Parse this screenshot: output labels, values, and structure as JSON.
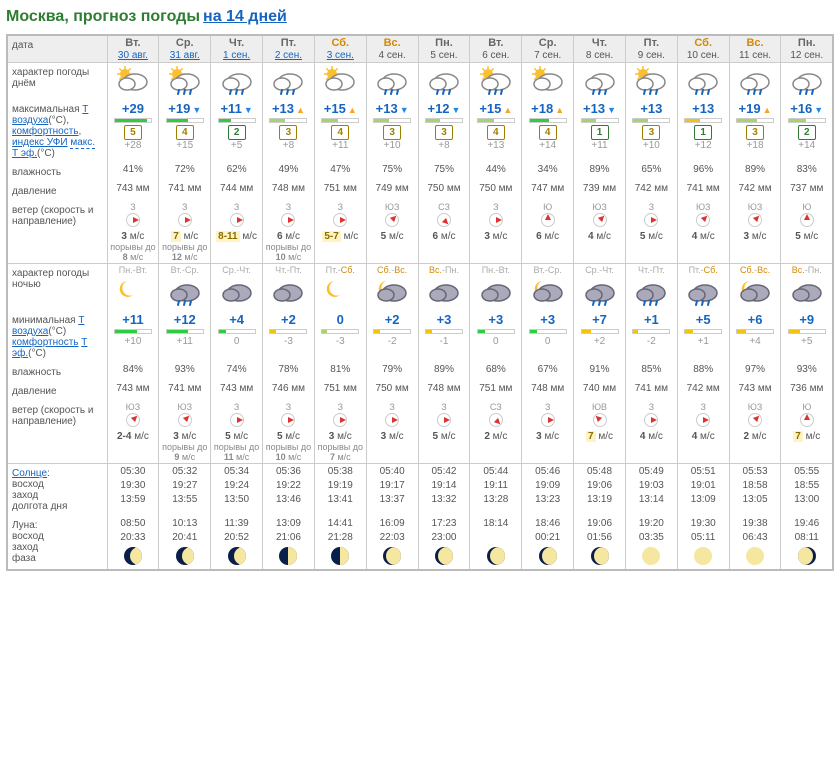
{
  "title": "Москва, прогноз погоды",
  "subtitle": "на 14 дней",
  "labels": {
    "date": "дата",
    "day_char": "характер погоды днём",
    "tmax": "максимальная",
    "tair": "Т воздуха",
    "comfort": "комфортность",
    "uvi": "индекс УФИ",
    "max": "макс.",
    "teff": "Т эф.",
    "humidity": "влажность",
    "pressure": "давление",
    "wind": "ветер (скорость и направление)",
    "night_char": "характер погоды ночью",
    "tmin": "минимальная",
    "sun": "Солнце",
    "sunrise": "восход",
    "sunset": "заход",
    "daylen": "долгота дня",
    "moon": "Луна:",
    "moonrise": "восход",
    "moonset": "заход",
    "phase": "фаза"
  },
  "colors": {
    "header_bg": "#eeeeee",
    "border": "#bbbbbb",
    "temp": "#1565c0",
    "weekend": "#d48806",
    "bar_green": "#2ecc40",
    "bar_yellow": "#f1c40f",
    "bar_lime": "#a4d46a"
  },
  "uv_colors": {
    "1": "#2e7d32",
    "2": "#2e7d32",
    "3": "#a08000",
    "4": "#a08000",
    "5": "#a08000"
  },
  "days": [
    {
      "dow": "Вт.",
      "date": "30 авг.",
      "link": true,
      "weekend": false,
      "day_icon": "suncloud",
      "tmax": "+29",
      "tmax_dir": "",
      "bar_day": {
        "fill": 90,
        "color": "#2ecc40"
      },
      "uv": "5",
      "teff": "+28",
      "hum_day": "41%",
      "pres_day": "743 мм",
      "wind_day": {
        "dir": "З",
        "rot": "w",
        "txt": "<b>3</b> м/с",
        "gust": "порывы до <b>8</b> м/с"
      },
      "night_period": "Пн.-Вт.",
      "night_icon": "nightmoon",
      "tmin": "+11",
      "bar_night": {
        "fill": 60,
        "color": "#2ecc40"
      },
      "teff_n": "+10",
      "hum_n": "84%",
      "pres_n": "743 мм",
      "wind_n": {
        "dir": "ЮЗ",
        "rot": "sw",
        "txt": "<b>2-4</b> м/с",
        "gust": ""
      },
      "sun": {
        "rise": "05:30",
        "set": "19:30",
        "len": "13:59"
      },
      "moon": {
        "rise": "08:50",
        "set": "20:33",
        "phase": "waxing-crescent"
      }
    },
    {
      "dow": "Ср.",
      "date": "31 авг.",
      "link": true,
      "weekend": false,
      "day_icon": "sunrain",
      "tmax": "+19",
      "tmax_dir": "down",
      "bar_day": {
        "fill": 60,
        "color": "#2ecc40"
      },
      "uv": "4",
      "teff": "+15",
      "hum_day": "72%",
      "pres_day": "741 мм",
      "wind_day": {
        "dir": "З",
        "rot": "w",
        "txt": "<span class=\"hl\">7</span> м/с",
        "gust": "порывы до <b>12</b> м/с"
      },
      "night_period": "Вт.-Ср.",
      "night_icon": "nightrain",
      "tmin": "+12",
      "bar_night": {
        "fill": 60,
        "color": "#2ecc40"
      },
      "teff_n": "+11",
      "hum_n": "93%",
      "pres_n": "741 мм",
      "wind_n": {
        "dir": "ЮЗ",
        "rot": "sw",
        "txt": "<b>3</b> м/с",
        "gust": "порывы до <b>9</b> м/с"
      },
      "sun": {
        "rise": "05:32",
        "set": "19:27",
        "len": "13:55"
      },
      "moon": {
        "rise": "10:13",
        "set": "20:41",
        "phase": "waxing-crescent"
      }
    },
    {
      "dow": "Чт.",
      "date": "1 сен.",
      "link": true,
      "weekend": false,
      "day_icon": "cloudrain",
      "tmax": "+11",
      "tmax_dir": "down",
      "bar_day": {
        "fill": 35,
        "color": "#2ecc40"
      },
      "uv": "2",
      "teff": "+5",
      "hum_day": "62%",
      "pres_day": "744 мм",
      "wind_day": {
        "dir": "З",
        "rot": "w",
        "txt": "<span class=\"hl\">8-11</span> м/с",
        "gust": ""
      },
      "night_period": "Ср.-Чт.",
      "night_icon": "nightclouds",
      "tmin": "+4",
      "bar_night": {
        "fill": 20,
        "color": "#2ecc40"
      },
      "teff_n": "0",
      "hum_n": "74%",
      "pres_n": "743 мм",
      "wind_n": {
        "dir": "З",
        "rot": "w",
        "txt": "<b>5</b> м/с",
        "gust": "порывы до <b>11</b> м/с"
      },
      "sun": {
        "rise": "05:34",
        "set": "19:24",
        "len": "13:50"
      },
      "moon": {
        "rise": "11:39",
        "set": "20:52",
        "phase": "waxing-crescent"
      }
    },
    {
      "dow": "Пт.",
      "date": "2 сен.",
      "link": true,
      "weekend": false,
      "day_icon": "cloudrain",
      "tmax": "+13",
      "tmax_dir": "up",
      "bar_day": {
        "fill": 40,
        "color": "#a4d46a"
      },
      "uv": "3",
      "teff": "+8",
      "hum_day": "49%",
      "pres_day": "748 мм",
      "wind_day": {
        "dir": "З",
        "rot": "w",
        "txt": "<b>6</b> м/с",
        "gust": "порывы до <b>10</b> м/с"
      },
      "night_period": "Чт.-Пт.",
      "night_icon": "nightclouds",
      "tmin": "+2",
      "bar_night": {
        "fill": 15,
        "color": "#f1c40f"
      },
      "teff_n": "-3",
      "hum_n": "78%",
      "pres_n": "746 мм",
      "wind_n": {
        "dir": "З",
        "rot": "w",
        "txt": "<b>5</b> м/с",
        "gust": "порывы до <b>10</b> м/с"
      },
      "sun": {
        "rise": "05:36",
        "set": "19:22",
        "len": "13:46"
      },
      "moon": {
        "rise": "13:09",
        "set": "21:06",
        "phase": "first-quarter"
      }
    },
    {
      "dow": "Сб.",
      "date": "3 сен.",
      "link": true,
      "weekend": true,
      "day_icon": "suncloud",
      "tmax": "+15",
      "tmax_dir": "up",
      "bar_day": {
        "fill": 45,
        "color": "#a4d46a"
      },
      "uv": "4",
      "teff": "+11",
      "hum_day": "47%",
      "pres_day": "751 мм",
      "wind_day": {
        "dir": "З",
        "rot": "w",
        "txt": "<span class=\"hl\">5-7</span> м/с",
        "gust": ""
      },
      "night_period": "Пт.-Сб.",
      "night_icon": "nightmoon",
      "tmin": "0",
      "bar_night": {
        "fill": 12,
        "color": "#a4d46a"
      },
      "teff_n": "-3",
      "hum_n": "81%",
      "pres_n": "751 мм",
      "wind_n": {
        "dir": "З",
        "rot": "w",
        "txt": "<b>3</b> м/с",
        "gust": "порывы до <b>7</b> м/с"
      },
      "sun": {
        "rise": "05:38",
        "set": "19:19",
        "len": "13:41"
      },
      "moon": {
        "rise": "14:41",
        "set": "21:28",
        "phase": "first-quarter"
      }
    },
    {
      "dow": "Вс.",
      "date": "4 сен.",
      "link": false,
      "weekend": true,
      "day_icon": "cloudrain",
      "tmax": "+13",
      "tmax_dir": "down",
      "bar_day": {
        "fill": 40,
        "color": "#a4d46a"
      },
      "uv": "3",
      "teff": "+10",
      "hum_day": "75%",
      "pres_day": "749 мм",
      "wind_day": {
        "dir": "ЮЗ",
        "rot": "sw",
        "txt": "<b>5</b> м/с",
        "gust": ""
      },
      "night_period": "Сб.-Вс.",
      "night_icon": "moonclouds",
      "tmin": "+2",
      "bar_night": {
        "fill": 15,
        "color": "#f1c40f"
      },
      "teff_n": "-2",
      "hum_n": "79%",
      "pres_n": "750 мм",
      "wind_n": {
        "dir": "З",
        "rot": "w",
        "txt": "<b>3</b> м/с",
        "gust": ""
      },
      "sun": {
        "rise": "05:40",
        "set": "19:17",
        "len": "13:37"
      },
      "moon": {
        "rise": "16:09",
        "set": "22:03",
        "phase": "waxing-gibbous"
      }
    },
    {
      "dow": "Пн.",
      "date": "5 сен.",
      "link": false,
      "weekend": false,
      "day_icon": "cloudrain",
      "tmax": "+12",
      "tmax_dir": "down",
      "bar_day": {
        "fill": 38,
        "color": "#a4d46a"
      },
      "uv": "3",
      "teff": "+8",
      "hum_day": "75%",
      "pres_day": "750 мм",
      "wind_day": {
        "dir": "СЗ",
        "rot": "nw",
        "txt": "<b>6</b> м/с",
        "gust": ""
      },
      "night_period": "Вс.-Пн.",
      "night_icon": "nightclouds",
      "tmin": "+3",
      "bar_night": {
        "fill": 18,
        "color": "#f1c40f"
      },
      "teff_n": "-1",
      "hum_n": "89%",
      "pres_n": "748 мм",
      "wind_n": {
        "dir": "З",
        "rot": "w",
        "txt": "<b>5</b> м/с",
        "gust": ""
      },
      "sun": {
        "rise": "05:42",
        "set": "19:14",
        "len": "13:32"
      },
      "moon": {
        "rise": "17:23",
        "set": "23:00",
        "phase": "waxing-gibbous"
      }
    },
    {
      "dow": "Вт.",
      "date": "6 сен.",
      "link": false,
      "weekend": false,
      "day_icon": "sunrain",
      "tmax": "+15",
      "tmax_dir": "up",
      "bar_day": {
        "fill": 45,
        "color": "#a4d46a"
      },
      "uv": "4",
      "teff": "+13",
      "hum_day": "44%",
      "pres_day": "750 мм",
      "wind_day": {
        "dir": "З",
        "rot": "w",
        "txt": "<b>3</b> м/с",
        "gust": ""
      },
      "night_period": "Пн.-Вт.",
      "night_icon": "nightclouds",
      "tmin": "+3",
      "bar_night": {
        "fill": 20,
        "color": "#2ecc40"
      },
      "teff_n": "0",
      "hum_n": "68%",
      "pres_n": "751 мм",
      "wind_n": {
        "dir": "СЗ",
        "rot": "nw",
        "txt": "<b>2</b> м/с",
        "gust": ""
      },
      "sun": {
        "rise": "05:44",
        "set": "19:11",
        "len": "13:28"
      },
      "moon": {
        "rise": "18:14",
        "set": "",
        "phase": "waxing-gibbous"
      }
    },
    {
      "dow": "Ср.",
      "date": "7 сен.",
      "link": false,
      "weekend": false,
      "day_icon": "suncloud",
      "tmax": "+18",
      "tmax_dir": "up",
      "bar_day": {
        "fill": 55,
        "color": "#2ecc40"
      },
      "uv": "4",
      "teff": "+14",
      "hum_day": "34%",
      "pres_day": "747 мм",
      "wind_day": {
        "dir": "Ю",
        "rot": "s",
        "txt": "<b>6</b> м/с",
        "gust": ""
      },
      "night_period": "Вт.-Ср.",
      "night_icon": "moonclouds",
      "tmin": "+3",
      "bar_night": {
        "fill": 20,
        "color": "#2ecc40"
      },
      "teff_n": "0",
      "hum_n": "67%",
      "pres_n": "748 мм",
      "wind_n": {
        "dir": "З",
        "rot": "w",
        "txt": "<b>3</b> м/с",
        "gust": ""
      },
      "sun": {
        "rise": "05:46",
        "set": "19:09",
        "len": "13:23"
      },
      "moon": {
        "rise": "18:46",
        "set": "00:21",
        "phase": "waxing-gibbous"
      }
    },
    {
      "dow": "Чт.",
      "date": "8 сен.",
      "link": false,
      "weekend": false,
      "day_icon": "cloudrain",
      "tmax": "+13",
      "tmax_dir": "down",
      "bar_day": {
        "fill": 40,
        "color": "#a4d46a"
      },
      "uv": "1",
      "teff": "+11",
      "hum_day": "89%",
      "pres_day": "739 мм",
      "wind_day": {
        "dir": "ЮЗ",
        "rot": "sw",
        "txt": "<b>4</b> м/с",
        "gust": ""
      },
      "night_period": "Ср.-Чт.",
      "night_icon": "nightrain",
      "tmin": "+7",
      "bar_night": {
        "fill": 25,
        "color": "#f1c40f"
      },
      "teff_n": "+2",
      "hum_n": "91%",
      "pres_n": "740 мм",
      "wind_n": {
        "dir": "ЮВ",
        "rot": "se",
        "txt": "<span class=\"hl\">7</span> м/с",
        "gust": ""
      },
      "sun": {
        "rise": "05:48",
        "set": "19:06",
        "len": "13:19"
      },
      "moon": {
        "rise": "19:06",
        "set": "01:56",
        "phase": "waxing-gibbous"
      }
    },
    {
      "dow": "Пт.",
      "date": "9 сен.",
      "link": false,
      "weekend": false,
      "day_icon": "sunrain",
      "tmax": "+13",
      "tmax_dir": "",
      "bar_day": {
        "fill": 40,
        "color": "#a4d46a"
      },
      "uv": "3",
      "teff": "+10",
      "hum_day": "65%",
      "pres_day": "742 мм",
      "wind_day": {
        "dir": "З",
        "rot": "w",
        "txt": "<b>5</b> м/с",
        "gust": ""
      },
      "night_period": "Чт.-Пт.",
      "night_icon": "nightrain",
      "tmin": "+1",
      "bar_night": {
        "fill": 14,
        "color": "#f1c40f"
      },
      "teff_n": "-2",
      "hum_n": "85%",
      "pres_n": "741 мм",
      "wind_n": {
        "dir": "З",
        "rot": "w",
        "txt": "<b>4</b> м/с",
        "gust": ""
      },
      "sun": {
        "rise": "05:49",
        "set": "19:03",
        "len": "13:14"
      },
      "moon": {
        "rise": "19:20",
        "set": "03:35",
        "phase": "full"
      }
    },
    {
      "dow": "Сб.",
      "date": "10 сен.",
      "link": false,
      "weekend": true,
      "day_icon": "cloudrain",
      "tmax": "+13",
      "tmax_dir": "",
      "bar_day": {
        "fill": 40,
        "color": "#f1c40f"
      },
      "uv": "1",
      "teff": "+12",
      "hum_day": "96%",
      "pres_day": "741 мм",
      "wind_day": {
        "dir": "ЮЗ",
        "rot": "sw",
        "txt": "<b>4</b> м/с",
        "gust": ""
      },
      "night_period": "Пт.-Сб.",
      "night_icon": "nightrain",
      "tmin": "+5",
      "bar_night": {
        "fill": 22,
        "color": "#f1c40f"
      },
      "teff_n": "+1",
      "hum_n": "88%",
      "pres_n": "742 мм",
      "wind_n": {
        "dir": "З",
        "rot": "w",
        "txt": "<b>4</b> м/с",
        "gust": ""
      },
      "sun": {
        "rise": "05:51",
        "set": "19:01",
        "len": "13:09"
      },
      "moon": {
        "rise": "19:30",
        "set": "05:11",
        "phase": "full"
      }
    },
    {
      "dow": "Вс.",
      "date": "11 сен.",
      "link": false,
      "weekend": true,
      "day_icon": "cloudrain",
      "tmax": "+19",
      "tmax_dir": "up",
      "bar_day": {
        "fill": 55,
        "color": "#a4d46a"
      },
      "uv": "3",
      "teff": "+18",
      "hum_day": "89%",
      "pres_day": "742 мм",
      "wind_day": {
        "dir": "ЮЗ",
        "rot": "sw",
        "txt": "<b>3</b> м/с",
        "gust": ""
      },
      "night_period": "Сб.-Вс.",
      "night_icon": "moonclouds",
      "tmin": "+6",
      "bar_night": {
        "fill": 25,
        "color": "#f1c40f"
      },
      "teff_n": "+4",
      "hum_n": "97%",
      "pres_n": "743 мм",
      "wind_n": {
        "dir": "ЮЗ",
        "rot": "sw",
        "txt": "<b>2</b> м/с",
        "gust": ""
      },
      "sun": {
        "rise": "05:53",
        "set": "18:58",
        "len": "13:05"
      },
      "moon": {
        "rise": "19:38",
        "set": "06:43",
        "phase": "full"
      }
    },
    {
      "dow": "Пн.",
      "date": "12 сен.",
      "link": false,
      "weekend": false,
      "day_icon": "cloudrain",
      "tmax": "+16",
      "tmax_dir": "down",
      "bar_day": {
        "fill": 48,
        "color": "#a4d46a"
      },
      "uv": "2",
      "teff": "+14",
      "hum_day": "83%",
      "pres_day": "737 мм",
      "wind_day": {
        "dir": "Ю",
        "rot": "s",
        "txt": "<b>5</b> м/с",
        "gust": ""
      },
      "night_period": "Вс.-Пн.",
      "night_icon": "nightclouds",
      "tmin": "+9",
      "bar_night": {
        "fill": 30,
        "color": "#f1c40f"
      },
      "teff_n": "+5",
      "hum_n": "93%",
      "pres_n": "736 мм",
      "wind_n": {
        "dir": "Ю",
        "rot": "s",
        "txt": "<span class=\"hl\">7</span> м/с",
        "gust": ""
      },
      "sun": {
        "rise": "05:55",
        "set": "18:55",
        "len": "13:00"
      },
      "moon": {
        "rise": "19:46",
        "set": "08:11",
        "phase": "waning-gibbous"
      }
    }
  ]
}
